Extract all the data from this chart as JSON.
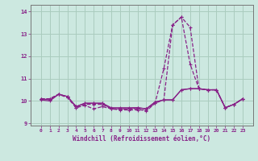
{
  "xlabel": "Windchill (Refroidissement éolien,°C)",
  "x": [
    0,
    1,
    2,
    3,
    4,
    5,
    6,
    7,
    8,
    9,
    10,
    11,
    12,
    13,
    14,
    15,
    16,
    17,
    18,
    19,
    20,
    21,
    22,
    23
  ],
  "line1": [
    10.1,
    10.1,
    10.3,
    10.15,
    9.7,
    9.8,
    9.65,
    9.75,
    9.65,
    9.6,
    9.6,
    9.6,
    9.6,
    9.9,
    11.45,
    13.4,
    13.75,
    13.3,
    10.55,
    10.5,
    10.5,
    9.7,
    9.85,
    10.1
  ],
  "line2": [
    10.1,
    10.1,
    10.3,
    10.2,
    9.7,
    9.85,
    9.85,
    9.85,
    9.65,
    9.65,
    9.65,
    9.65,
    9.55,
    9.9,
    10.05,
    13.4,
    13.75,
    11.65,
    10.55,
    10.5,
    10.5,
    9.7,
    9.85,
    10.1
  ],
  "line3": [
    10.1,
    10.05,
    10.3,
    10.2,
    9.75,
    9.9,
    9.9,
    9.9,
    9.65,
    9.65,
    9.65,
    9.7,
    9.65,
    9.95,
    10.05,
    10.05,
    10.5,
    10.55,
    10.55,
    10.5,
    10.5,
    9.7,
    9.85,
    10.1
  ],
  "line4": [
    10.05,
    10.0,
    10.3,
    10.2,
    9.75,
    9.9,
    9.9,
    9.9,
    9.7,
    9.7,
    9.7,
    9.7,
    9.65,
    9.95,
    10.05,
    10.05,
    10.5,
    10.55,
    10.55,
    10.5,
    10.5,
    9.7,
    9.85,
    10.1
  ],
  "line_color": "#882288",
  "bg_color": "#cce8e0",
  "grid_color": "#aaccbe",
  "ylim": [
    8.9,
    14.3
  ],
  "yticks": [
    9,
    10,
    11,
    12,
    13,
    14
  ],
  "xticks": [
    0,
    1,
    2,
    3,
    4,
    5,
    6,
    7,
    8,
    9,
    10,
    11,
    12,
    13,
    14,
    15,
    16,
    17,
    18,
    19,
    20,
    21,
    22,
    23
  ]
}
